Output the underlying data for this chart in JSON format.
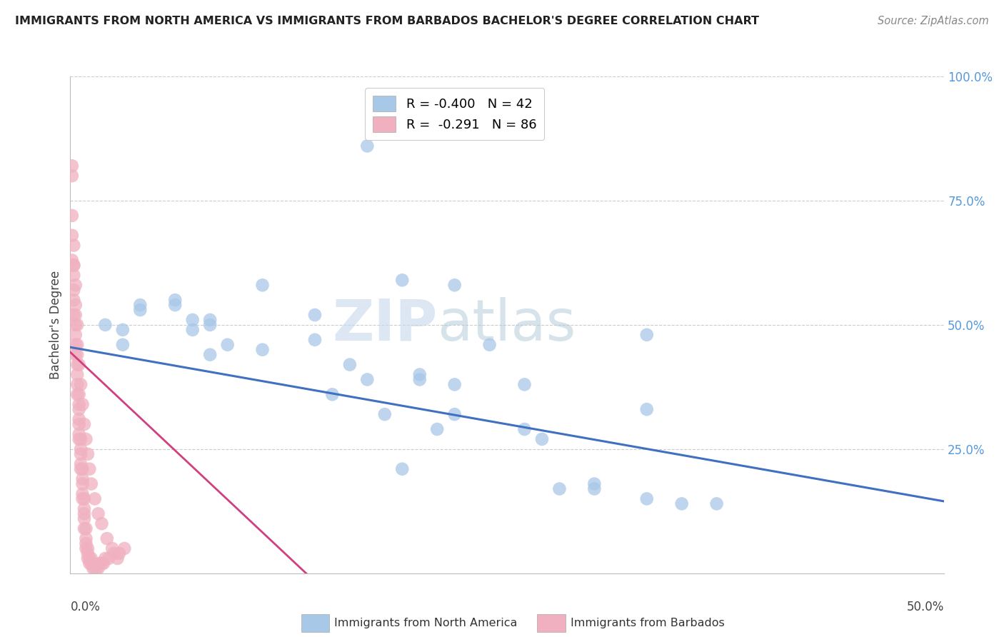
{
  "title": "IMMIGRANTS FROM NORTH AMERICA VS IMMIGRANTS FROM BARBADOS BACHELOR'S DEGREE CORRELATION CHART",
  "source": "Source: ZipAtlas.com",
  "ylabel": "Bachelor's Degree",
  "right_yticks": [
    "100.0%",
    "75.0%",
    "50.0%",
    "25.0%"
  ],
  "right_ytick_vals": [
    1.0,
    0.75,
    0.5,
    0.25
  ],
  "legend1_r": "R = -0.400",
  "legend1_n": "N = 42",
  "legend2_r": "R =  -0.291",
  "legend2_n": "N = 86",
  "blue_color": "#a8c8e8",
  "pink_color": "#f0b0c0",
  "blue_line_color": "#4070c0",
  "pink_line_color": "#d04080",
  "watermark_zip": "ZIP",
  "watermark_atlas": "atlas",
  "xlim": [
    0.0,
    0.5
  ],
  "ylim": [
    0.0,
    1.0
  ],
  "xtick_vals": [
    0.0,
    0.1,
    0.2,
    0.3,
    0.4,
    0.5
  ],
  "xtick_labels": [
    "0.0%",
    "",
    "",
    "",
    "",
    "50.0%"
  ],
  "blue_line_x0": 0.0,
  "blue_line_x1": 0.5,
  "blue_line_y0": 0.455,
  "blue_line_y1": 0.145,
  "pink_line_x0": 0.0,
  "pink_line_x1": 0.135,
  "pink_line_y0": 0.445,
  "pink_line_y1": 0.0,
  "blue_scatter_x": [
    0.08,
    0.17,
    0.02,
    0.04,
    0.06,
    0.07,
    0.07,
    0.09,
    0.08,
    0.03,
    0.11,
    0.14,
    0.19,
    0.22,
    0.24,
    0.2,
    0.22,
    0.22,
    0.19,
    0.3,
    0.28,
    0.33,
    0.35,
    0.33,
    0.26,
    0.16,
    0.15,
    0.18,
    0.21,
    0.2,
    0.11,
    0.14,
    0.17,
    0.26,
    0.3,
    0.37,
    0.33,
    0.27,
    0.04,
    0.06,
    0.08,
    0.03
  ],
  "blue_scatter_y": [
    0.5,
    0.86,
    0.5,
    0.53,
    0.55,
    0.51,
    0.49,
    0.46,
    0.44,
    0.46,
    0.45,
    0.47,
    0.59,
    0.58,
    0.46,
    0.4,
    0.38,
    0.32,
    0.21,
    0.18,
    0.17,
    0.15,
    0.14,
    0.48,
    0.38,
    0.42,
    0.36,
    0.32,
    0.29,
    0.39,
    0.58,
    0.52,
    0.39,
    0.29,
    0.17,
    0.14,
    0.33,
    0.27,
    0.54,
    0.54,
    0.51,
    0.49
  ],
  "pink_scatter_x": [
    0.001,
    0.001,
    0.001,
    0.002,
    0.002,
    0.002,
    0.002,
    0.002,
    0.003,
    0.003,
    0.003,
    0.003,
    0.003,
    0.004,
    0.004,
    0.004,
    0.004,
    0.004,
    0.005,
    0.005,
    0.005,
    0.005,
    0.005,
    0.005,
    0.005,
    0.006,
    0.006,
    0.006,
    0.006,
    0.006,
    0.007,
    0.007,
    0.007,
    0.007,
    0.007,
    0.008,
    0.008,
    0.008,
    0.008,
    0.008,
    0.009,
    0.009,
    0.009,
    0.009,
    0.01,
    0.01,
    0.01,
    0.011,
    0.011,
    0.012,
    0.012,
    0.013,
    0.013,
    0.014,
    0.015,
    0.016,
    0.017,
    0.018,
    0.019,
    0.02,
    0.022,
    0.025,
    0.028,
    0.031,
    0.001,
    0.001,
    0.002,
    0.002,
    0.003,
    0.003,
    0.004,
    0.004,
    0.005,
    0.006,
    0.007,
    0.008,
    0.009,
    0.01,
    0.011,
    0.012,
    0.014,
    0.016,
    0.018,
    0.021,
    0.024,
    0.027
  ],
  "pink_scatter_y": [
    0.8,
    0.68,
    0.63,
    0.62,
    0.6,
    0.57,
    0.55,
    0.52,
    0.52,
    0.5,
    0.48,
    0.46,
    0.44,
    0.44,
    0.42,
    0.4,
    0.38,
    0.36,
    0.36,
    0.34,
    0.33,
    0.31,
    0.3,
    0.28,
    0.27,
    0.27,
    0.25,
    0.24,
    0.22,
    0.21,
    0.21,
    0.19,
    0.18,
    0.16,
    0.15,
    0.15,
    0.13,
    0.12,
    0.11,
    0.09,
    0.09,
    0.07,
    0.06,
    0.05,
    0.05,
    0.04,
    0.03,
    0.03,
    0.02,
    0.03,
    0.02,
    0.02,
    0.01,
    0.01,
    0.01,
    0.01,
    0.02,
    0.02,
    0.02,
    0.03,
    0.03,
    0.04,
    0.04,
    0.05,
    0.82,
    0.72,
    0.66,
    0.62,
    0.58,
    0.54,
    0.5,
    0.46,
    0.42,
    0.38,
    0.34,
    0.3,
    0.27,
    0.24,
    0.21,
    0.18,
    0.15,
    0.12,
    0.1,
    0.07,
    0.05,
    0.03
  ]
}
